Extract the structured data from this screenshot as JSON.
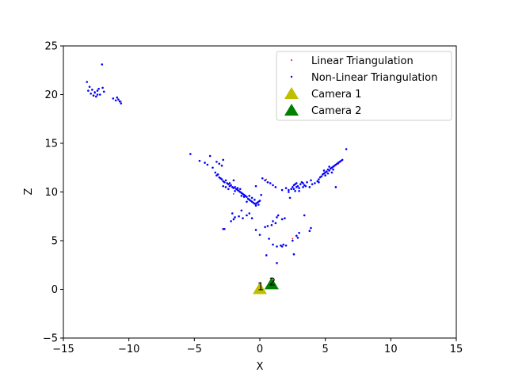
{
  "chart_data": {
    "type": "scatter",
    "title": "",
    "xlabel": "X",
    "ylabel": "Z",
    "xlim": [
      -15,
      15
    ],
    "ylim": [
      -5,
      25
    ],
    "xticks": [
      -15,
      -10,
      -5,
      0,
      5,
      10,
      15
    ],
    "yticks": [
      -5,
      0,
      5,
      10,
      15,
      20,
      25
    ],
    "xtick_labels": [
      "−15",
      "−10",
      "−5",
      "0",
      "5",
      "10",
      "15"
    ],
    "ytick_labels": [
      "−5",
      "0",
      "5",
      "10",
      "15",
      "20",
      "25"
    ],
    "grid": false,
    "legend_position": "top-right",
    "series": [
      {
        "name": "Linear Triangulation",
        "color": "#ff0000",
        "marker": "dot",
        "points": [
          [
            6.0,
            12.9
          ],
          [
            0.5,
            11.3
          ],
          [
            2.5,
            5.2
          ],
          [
            -2.0,
            9.8
          ],
          [
            -12.6,
            20.3
          ],
          [
            -10.6,
            19.3
          ]
        ]
      },
      {
        "name": "Non-Linear Triangulation",
        "color": "#0000ff",
        "marker": "dot",
        "points": [
          [
            -13.2,
            21.3
          ],
          [
            -13.0,
            20.8
          ],
          [
            -12.8,
            20.5
          ],
          [
            -12.6,
            20.2
          ],
          [
            -12.4,
            20.4
          ],
          [
            -12.2,
            20.0
          ],
          [
            -12.0,
            20.7
          ],
          [
            -12.9,
            20.1
          ],
          [
            -12.5,
            19.8
          ],
          [
            -13.1,
            20.4
          ],
          [
            -12.7,
            19.9
          ],
          [
            -12.3,
            20.6
          ],
          [
            -11.9,
            20.3
          ],
          [
            -12.05,
            23.1
          ],
          [
            -12.4,
            20.0
          ],
          [
            -11.2,
            19.6
          ],
          [
            -10.8,
            19.5
          ],
          [
            -10.7,
            19.3
          ],
          [
            -10.6,
            19.1
          ],
          [
            -11.0,
            19.4
          ],
          [
            -10.9,
            19.7
          ],
          [
            -5.3,
            13.9
          ],
          [
            -4.6,
            13.2
          ],
          [
            -4.2,
            13.0
          ],
          [
            -4.0,
            12.8
          ],
          [
            -3.6,
            12.5
          ],
          [
            -3.8,
            13.7
          ],
          [
            -3.3,
            13.1
          ],
          [
            -3.1,
            12.9
          ],
          [
            -2.9,
            12.7
          ],
          [
            -2.8,
            13.3
          ],
          [
            -3.4,
            12.0
          ],
          [
            -3.3,
            11.7
          ],
          [
            -3.2,
            11.8
          ],
          [
            -3.1,
            11.5
          ],
          [
            -3.0,
            11.4
          ],
          [
            -2.9,
            11.3
          ],
          [
            -2.8,
            11.1
          ],
          [
            -2.7,
            11.0
          ],
          [
            -2.6,
            11.2
          ],
          [
            -2.5,
            10.9
          ],
          [
            -2.4,
            10.8
          ],
          [
            -2.3,
            10.6
          ],
          [
            -2.2,
            10.7
          ],
          [
            -2.1,
            10.5
          ],
          [
            -2.0,
            10.4
          ],
          [
            -1.9,
            10.5
          ],
          [
            -1.8,
            10.3
          ],
          [
            -1.7,
            10.2
          ],
          [
            -1.6,
            10.1
          ],
          [
            -1.5,
            10.0
          ],
          [
            -1.4,
            9.9
          ],
          [
            -1.3,
            9.8
          ],
          [
            -1.2,
            9.7
          ],
          [
            -1.1,
            9.6
          ],
          [
            -1.0,
            9.5
          ],
          [
            -0.9,
            9.3
          ],
          [
            -0.8,
            9.2
          ],
          [
            -0.7,
            9.1
          ],
          [
            -0.6,
            9.0
          ],
          [
            -0.5,
            8.9
          ],
          [
            -0.4,
            8.8
          ],
          [
            -0.3,
            8.8
          ],
          [
            -0.2,
            8.9
          ],
          [
            -0.1,
            9.0
          ],
          [
            0.0,
            9.1
          ],
          [
            -0.6,
            9.4
          ],
          [
            -0.8,
            9.6
          ],
          [
            -1.2,
            9.5
          ],
          [
            -0.4,
            9.2
          ],
          [
            -1.5,
            10.3
          ],
          [
            -2.6,
            10.5
          ],
          [
            -2.3,
            10.9
          ],
          [
            -1.9,
            10.1
          ],
          [
            -2.8,
            10.6
          ],
          [
            -1.0,
            9.0
          ],
          [
            -2.0,
            11.2
          ],
          [
            -1.7,
            10.4
          ],
          [
            -0.3,
            8.6
          ],
          [
            -0.1,
            8.7
          ],
          [
            -1.4,
            9.6
          ],
          [
            -2.4,
            10.3
          ],
          [
            0.2,
            11.4
          ],
          [
            0.4,
            11.2
          ],
          [
            0.6,
            11.0
          ],
          [
            0.8,
            10.9
          ],
          [
            1.0,
            10.7
          ],
          [
            1.2,
            10.5
          ],
          [
            -0.3,
            10.6
          ],
          [
            0.1,
            9.7
          ],
          [
            2.0,
            10.4
          ],
          [
            2.2,
            10.2
          ],
          [
            2.3,
            9.4
          ],
          [
            2.4,
            10.3
          ],
          [
            2.5,
            10.5
          ],
          [
            2.6,
            10.7
          ],
          [
            2.7,
            10.8
          ],
          [
            2.8,
            10.9
          ],
          [
            2.9,
            10.6
          ],
          [
            3.0,
            10.4
          ],
          [
            3.1,
            10.8
          ],
          [
            3.2,
            11.0
          ],
          [
            3.3,
            10.9
          ],
          [
            3.4,
            10.7
          ],
          [
            3.5,
            10.6
          ],
          [
            3.0,
            10.1
          ],
          [
            3.6,
            11.0
          ],
          [
            3.8,
            10.5
          ],
          [
            3.9,
            11.2
          ],
          [
            4.0,
            10.8
          ],
          [
            4.2,
            10.9
          ],
          [
            4.4,
            11.1
          ],
          [
            4.5,
            11.3
          ],
          [
            4.6,
            11.5
          ],
          [
            4.7,
            11.6
          ],
          [
            4.8,
            11.8
          ],
          [
            4.9,
            11.9
          ],
          [
            5.0,
            12.0
          ],
          [
            5.1,
            12.1
          ],
          [
            5.2,
            12.3
          ],
          [
            5.3,
            12.2
          ],
          [
            5.4,
            12.4
          ],
          [
            5.5,
            12.5
          ],
          [
            5.6,
            12.6
          ],
          [
            5.7,
            12.7
          ],
          [
            5.8,
            12.8
          ],
          [
            5.9,
            12.9
          ],
          [
            6.0,
            13.0
          ],
          [
            6.1,
            13.1
          ],
          [
            6.2,
            13.2
          ],
          [
            5.6,
            12.3
          ],
          [
            5.3,
            12.6
          ],
          [
            4.9,
            12.2
          ],
          [
            5.0,
            11.7
          ],
          [
            5.8,
            10.5
          ],
          [
            6.6,
            14.4
          ],
          [
            5.5,
            12.0
          ],
          [
            6.3,
            13.3
          ],
          [
            4.5,
            11.0
          ],
          [
            5.2,
            11.9
          ],
          [
            2.6,
            10.3
          ],
          [
            2.8,
            10.5
          ],
          [
            2.2,
            10.0
          ],
          [
            1.7,
            10.2
          ],
          [
            2.7,
            10.1
          ],
          [
            3.3,
            10.5
          ],
          [
            -2.1,
            7.8
          ],
          [
            -2.0,
            7.2
          ],
          [
            -1.9,
            7.4
          ],
          [
            -1.6,
            7.5
          ],
          [
            -1.3,
            7.3
          ],
          [
            -1.0,
            7.6
          ],
          [
            -0.8,
            7.8
          ],
          [
            -0.6,
            7.3
          ],
          [
            -2.8,
            6.2
          ],
          [
            -2.7,
            6.2
          ],
          [
            -1.4,
            8.1
          ],
          [
            -2.2,
            7.0
          ],
          [
            -0.3,
            6.1
          ],
          [
            0.0,
            5.6
          ],
          [
            0.4,
            6.4
          ],
          [
            0.6,
            6.5
          ],
          [
            0.9,
            6.6
          ],
          [
            1.2,
            6.8
          ],
          [
            1.3,
            7.4
          ],
          [
            1.4,
            7.6
          ],
          [
            1.7,
            7.2
          ],
          [
            1.9,
            7.3
          ],
          [
            1.0,
            7.0
          ],
          [
            0.7,
            5.2
          ],
          [
            1.0,
            4.6
          ],
          [
            1.3,
            4.4
          ],
          [
            1.6,
            4.5
          ],
          [
            1.8,
            4.6
          ],
          [
            2.0,
            4.5
          ],
          [
            2.5,
            5.0
          ],
          [
            2.8,
            5.5
          ],
          [
            3.0,
            5.8
          ],
          [
            3.4,
            7.6
          ],
          [
            3.8,
            6.0
          ],
          [
            3.9,
            6.3
          ],
          [
            2.9,
            5.3
          ],
          [
            0.5,
            3.5
          ],
          [
            1.3,
            2.7
          ],
          [
            2.6,
            3.6
          ],
          [
            1.7,
            4.4
          ]
        ]
      }
    ],
    "cameras": [
      {
        "name": "Camera 1",
        "label": "1",
        "x": 0.0,
        "y": 0.0,
        "color": "#bfbf00"
      },
      {
        "name": "Camera 2",
        "label": "2",
        "x": 0.9,
        "y": 0.5,
        "color": "#008000"
      }
    ]
  }
}
